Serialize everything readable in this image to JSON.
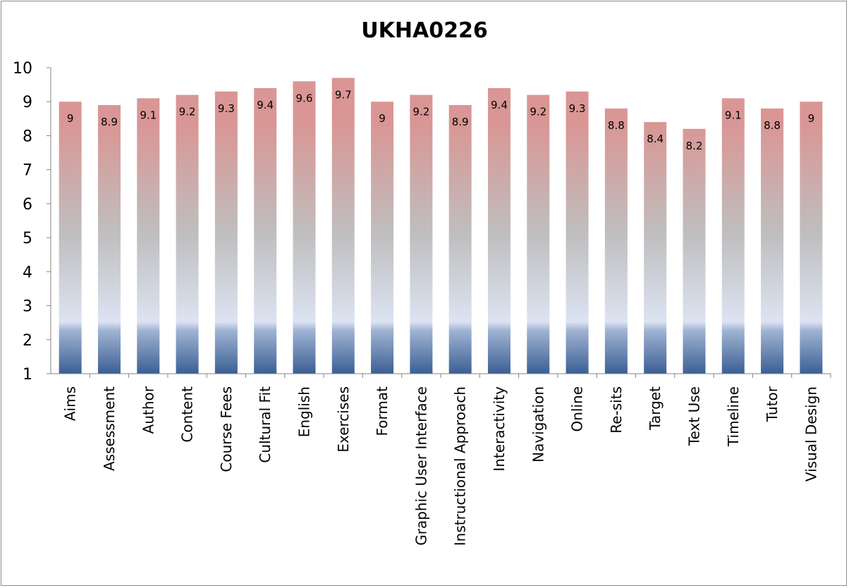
{
  "chart_data": {
    "type": "bar",
    "title": "UKHA0226",
    "xlabel": "",
    "ylabel": "",
    "ylim": [
      1,
      10
    ],
    "yticks": [
      1,
      2,
      3,
      4,
      5,
      6,
      7,
      8,
      9,
      10
    ],
    "grid": false,
    "legend": "none",
    "categories": [
      "Aims",
      "Assessment",
      "Author",
      "Content",
      "Course Fees",
      "Cultural Fit",
      "English",
      "Exercises",
      "Format",
      "Graphic User Interface",
      "Instructional Approach",
      "Interactivity",
      "Navigation",
      "Online",
      "Re-sits",
      "Target",
      "Text Use",
      "Timeline",
      "Tutor",
      "Visual Design"
    ],
    "values": [
      9,
      8.9,
      9.1,
      9.2,
      9.3,
      9.4,
      9.6,
      9.7,
      9,
      9.2,
      8.9,
      9.4,
      9.2,
      9.3,
      8.8,
      8.4,
      8.2,
      9.1,
      8.8,
      9
    ],
    "data_labels": [
      "9",
      "8.9",
      "9.1",
      "9.2",
      "9.3",
      "9.4",
      "9.6",
      "9.7",
      "9",
      "9.2",
      "8.9",
      "9.4",
      "9.2",
      "9.3",
      "8.8",
      "8.4",
      "8.2",
      "9.1",
      "8.8",
      "9"
    ],
    "bar_gradient": {
      "top": "#d99694",
      "middle": "#bfbfbf",
      "light": "#dce3f2",
      "bottom": "#3b5f94"
    }
  }
}
